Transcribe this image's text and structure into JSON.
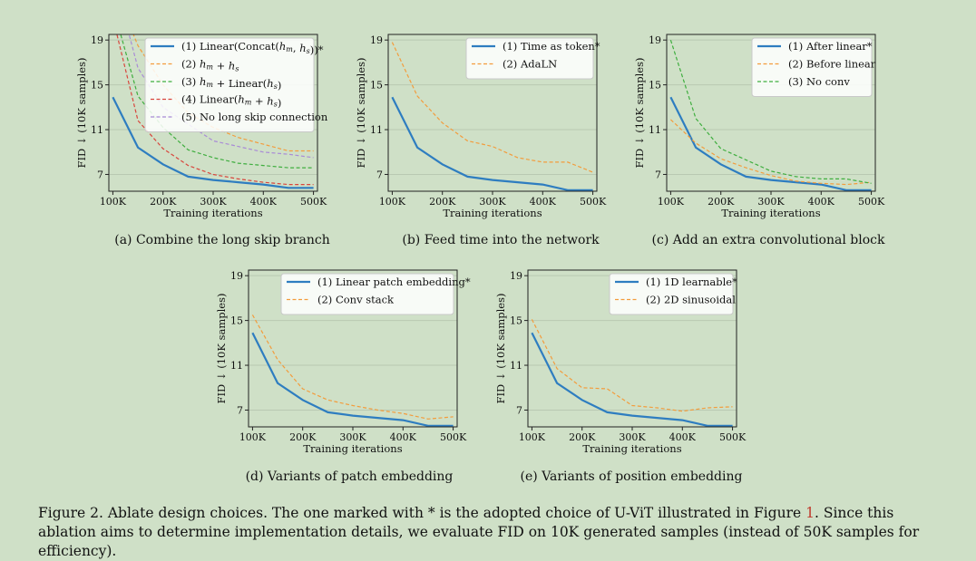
{
  "colors": {
    "background": "#cfe0c7",
    "grid": "#b9c9b2",
    "series": [
      "#2e7dc0",
      "#f39c3c",
      "#3fae3f",
      "#d8453c",
      "#a98bd6"
    ]
  },
  "chart_data": [
    {
      "id": "a",
      "type": "line",
      "caption": "(a) Combine the long skip branch",
      "xlabel": "Training iterations",
      "ylabel": "FID ↓ (10K samples)",
      "x": [
        100,
        150,
        200,
        250,
        300,
        350,
        400,
        450,
        500
      ],
      "xticks": [
        100,
        200,
        300,
        400,
        500
      ],
      "xtick_labels": [
        "100K",
        "200K",
        "300K",
        "400K",
        "500K"
      ],
      "yticks": [
        7,
        11,
        15,
        19
      ],
      "xlim": [
        92,
        508
      ],
      "ylim": [
        5.5,
        19.5
      ],
      "grid": true,
      "legend": "top-right",
      "series": [
        {
          "name": "(1) Linear(Concat(",
          "name_math": [
            "h",
            "m",
            ", ",
            "h",
            "s",
            "))*"
          ],
          "style": "solid",
          "values": [
            13.9,
            9.4,
            7.9,
            6.8,
            6.5,
            6.3,
            6.1,
            5.8,
            5.8
          ]
        },
        {
          "name": "(2) ",
          "name_math": [
            "h",
            "m",
            " + ",
            "h",
            "s",
            ""
          ],
          "style": "dashed",
          "values": [
            24.0,
            18.5,
            15.0,
            12.5,
            11.2,
            10.3,
            9.7,
            9.1,
            9.1
          ]
        },
        {
          "name": "(3) ",
          "name_math": [
            "h",
            "m",
            " + Linear(",
            "h",
            "s",
            ")"
          ],
          "style": "dashed",
          "values": [
            22.0,
            14.0,
            11.2,
            9.2,
            8.5,
            8.0,
            7.8,
            7.6,
            7.6
          ]
        },
        {
          "name": "(4) Linear(",
          "name_math": [
            "h",
            "m",
            " + ",
            "h",
            "s",
            ")"
          ],
          "style": "dashed",
          "values": [
            21.0,
            11.8,
            9.3,
            7.8,
            7.0,
            6.6,
            6.3,
            6.1,
            6.1
          ]
        },
        {
          "name": "(5) No long skip connection",
          "name_math": null,
          "style": "dashed",
          "values": [
            25.0,
            16.5,
            13.0,
            11.5,
            10.0,
            9.5,
            9.0,
            8.8,
            8.5
          ]
        }
      ]
    },
    {
      "id": "b",
      "type": "line",
      "caption": "(b) Feed time into the network",
      "xlabel": "Training iterations",
      "ylabel": "FID ↓ (10K samples)",
      "x": [
        100,
        150,
        200,
        250,
        300,
        350,
        400,
        450,
        500
      ],
      "xticks": [
        100,
        200,
        300,
        400,
        500
      ],
      "xtick_labels": [
        "100K",
        "200K",
        "300K",
        "400K",
        "500K"
      ],
      "yticks": [
        7,
        11,
        15,
        19
      ],
      "xlim": [
        92,
        508
      ],
      "ylim": [
        5.5,
        19.5
      ],
      "grid": true,
      "legend": "top-right",
      "series": [
        {
          "name": "(1) Time as token*",
          "style": "solid",
          "values": [
            13.9,
            9.4,
            7.9,
            6.8,
            6.5,
            6.3,
            6.1,
            5.6,
            5.6
          ]
        },
        {
          "name": "(2) AdaLN",
          "style": "dashed",
          "values": [
            18.8,
            14.0,
            11.6,
            10.0,
            9.5,
            8.5,
            8.1,
            8.1,
            7.2
          ]
        }
      ]
    },
    {
      "id": "c",
      "type": "line",
      "caption": "(c) Add an extra convolutional block",
      "xlabel": "Training iterations",
      "ylabel": "FID ↓ (10K samples)",
      "x": [
        100,
        150,
        200,
        250,
        300,
        350,
        400,
        450,
        500
      ],
      "xticks": [
        100,
        200,
        300,
        400,
        500
      ],
      "xtick_labels": [
        "100K",
        "200K",
        "300K",
        "400K",
        "500K"
      ],
      "yticks": [
        7,
        11,
        15,
        19
      ],
      "xlim": [
        92,
        508
      ],
      "ylim": [
        5.5,
        19.5
      ],
      "grid": true,
      "legend": "top-right",
      "series": [
        {
          "name": "(1) After linear*",
          "style": "solid",
          "values": [
            13.9,
            9.4,
            7.9,
            6.8,
            6.5,
            6.3,
            6.1,
            5.6,
            5.6
          ]
        },
        {
          "name": "(2) Before linear",
          "style": "dashed",
          "values": [
            11.9,
            9.8,
            8.4,
            7.6,
            6.9,
            6.4,
            6.2,
            6.1,
            6.3
          ]
        },
        {
          "name": "(3) No conv",
          "style": "dashed",
          "values": [
            19.0,
            12.0,
            9.3,
            8.3,
            7.3,
            6.8,
            6.6,
            6.6,
            6.2
          ]
        }
      ]
    },
    {
      "id": "d",
      "type": "line",
      "caption": "(d) Variants of patch embedding",
      "xlabel": "Training iterations",
      "ylabel": "FID ↓ (10K samples)",
      "x": [
        100,
        150,
        200,
        250,
        300,
        350,
        400,
        450,
        500
      ],
      "xticks": [
        100,
        200,
        300,
        400,
        500
      ],
      "xtick_labels": [
        "100K",
        "200K",
        "300K",
        "400K",
        "500K"
      ],
      "yticks": [
        7,
        11,
        15,
        19
      ],
      "xlim": [
        92,
        508
      ],
      "ylim": [
        5.5,
        19.5
      ],
      "grid": true,
      "legend": "top-right",
      "series": [
        {
          "name": "(1) Linear patch embedding*",
          "style": "solid",
          "values": [
            13.9,
            9.4,
            7.9,
            6.8,
            6.5,
            6.3,
            6.1,
            5.6,
            5.6
          ]
        },
        {
          "name": "(2) Conv stack",
          "style": "dashed",
          "values": [
            15.5,
            11.5,
            8.9,
            7.9,
            7.4,
            7.0,
            6.7,
            6.2,
            6.4
          ]
        }
      ]
    },
    {
      "id": "e",
      "type": "line",
      "caption": "(e) Variants of position embedding",
      "xlabel": "Training iterations",
      "ylabel": "FID ↓ (10K samples)",
      "x": [
        100,
        150,
        200,
        250,
        300,
        350,
        400,
        450,
        500
      ],
      "xticks": [
        100,
        200,
        300,
        400,
        500
      ],
      "xtick_labels": [
        "100K",
        "200K",
        "300K",
        "400K",
        "500K"
      ],
      "yticks": [
        7,
        11,
        15,
        19
      ],
      "xlim": [
        92,
        508
      ],
      "ylim": [
        5.5,
        19.5
      ],
      "grid": true,
      "legend": "top-right",
      "series": [
        {
          "name": "(1) 1D learnable*",
          "style": "solid",
          "values": [
            13.9,
            9.4,
            7.9,
            6.8,
            6.5,
            6.3,
            6.1,
            5.6,
            5.6
          ]
        },
        {
          "name": "(2) 2D sinusoidal",
          "style": "dashed",
          "values": [
            15.1,
            10.7,
            9.0,
            8.9,
            7.4,
            7.2,
            6.9,
            7.2,
            7.3
          ]
        }
      ]
    }
  ],
  "caption": {
    "before": "Figure 2. Ablate design choices. The one marked with * is the adopted choice of U-ViT illustrated in Figure ",
    "ref": "1",
    "after": ". Since this ablation aims to determine implementation details, we evaluate FID on 10K generated samples (instead of 50K samples for efficiency)."
  }
}
